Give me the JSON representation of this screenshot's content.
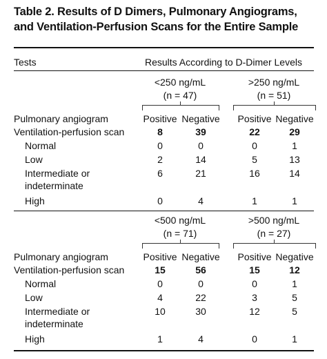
{
  "title_lines": [
    "Table 2. Results of D Dimers, Pulmonary Angiograms,",
    "and Ventilation-Perfusion Scans for the Entire Sample"
  ],
  "header": {
    "tests": "Tests",
    "results": "Results According to D-Dimer Levels"
  },
  "panels": [
    {
      "groups": [
        {
          "level": "<250 ng/mL",
          "n": "(n = 47)"
        },
        {
          "level": ">250 ng/mL",
          "n": "(n = 51)"
        }
      ],
      "angiogram_label": "Pulmonary angiogram",
      "columns": [
        "Positive",
        "Negative",
        "Positive",
        "Negative"
      ],
      "rows": [
        {
          "label_lines": [
            "Ventilation-perfusion scan"
          ],
          "values": [
            8,
            39,
            22,
            29
          ]
        },
        {
          "label_lines": [
            "Normal"
          ],
          "values": [
            0,
            0,
            0,
            1
          ]
        },
        {
          "label_lines": [
            "Low"
          ],
          "values": [
            2,
            14,
            5,
            13
          ]
        },
        {
          "label_lines": [
            "Intermediate or",
            "indeterminate"
          ],
          "values": [
            6,
            21,
            16,
            14
          ]
        },
        {
          "label_lines": [
            "High"
          ],
          "values": [
            0,
            4,
            1,
            1
          ]
        }
      ]
    },
    {
      "groups": [
        {
          "level": "<500 ng/mL",
          "n": "(n = 71)"
        },
        {
          "level": ">500 ng/mL",
          "n": "(n = 27)"
        }
      ],
      "angiogram_label": "Pulmonary angiogram",
      "columns": [
        "Positive",
        "Negative",
        "Positive",
        "Negative"
      ],
      "rows": [
        {
          "label_lines": [
            "Ventilation-perfusion scan"
          ],
          "values": [
            15,
            56,
            15,
            12
          ]
        },
        {
          "label_lines": [
            "Normal"
          ],
          "values": [
            0,
            0,
            0,
            1
          ]
        },
        {
          "label_lines": [
            "Low"
          ],
          "values": [
            4,
            22,
            3,
            5
          ]
        },
        {
          "label_lines": [
            "Intermediate or",
            "indeterminate"
          ],
          "values": [
            10,
            30,
            12,
            5
          ]
        },
        {
          "label_lines": [
            "High"
          ],
          "values": [
            1,
            4,
            0,
            1
          ]
        }
      ]
    }
  ]
}
